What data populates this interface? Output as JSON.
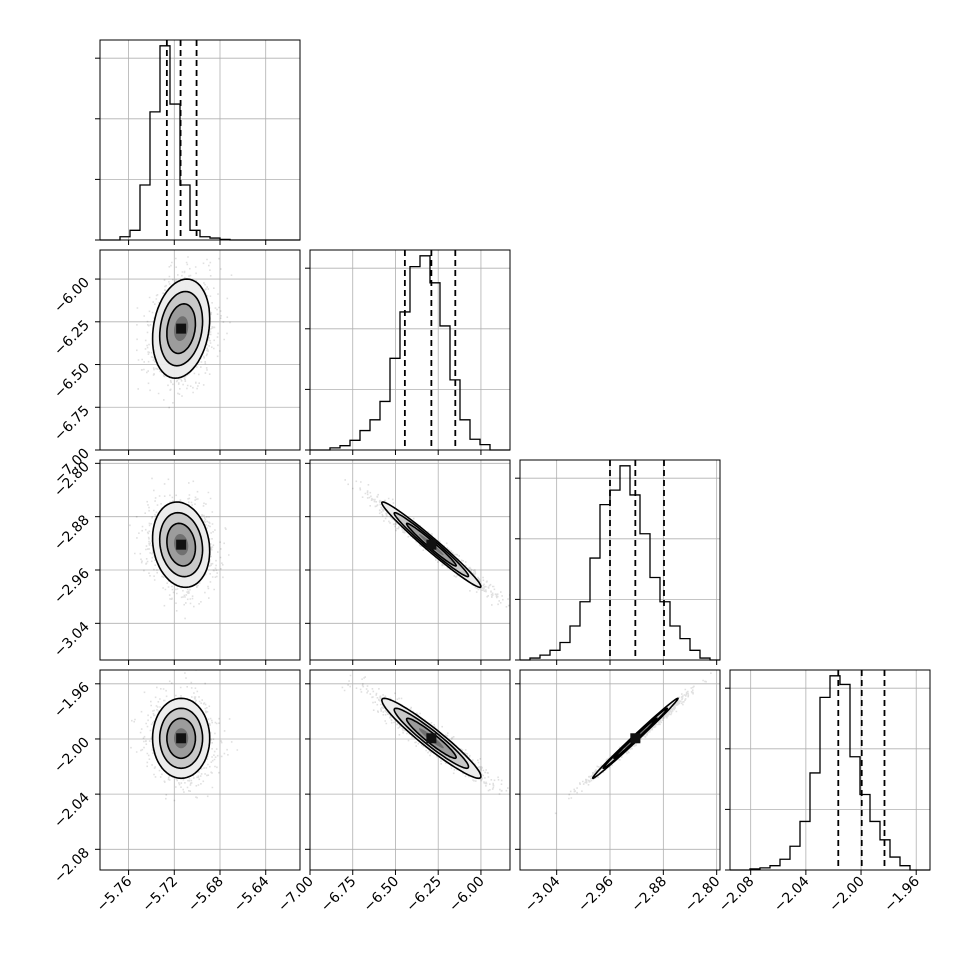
{
  "chart_data": {
    "type": "corner",
    "grid": true,
    "parameters": [
      {
        "name": "",
        "range": [
          -5.785,
          -5.61
        ],
        "ticks": [
          -5.76,
          -5.72,
          -5.68,
          -5.64
        ],
        "tick_labels": [
          "−5.76",
          "−5.72",
          "−5.68",
          "−5.64"
        ],
        "quantiles": [
          -5.7265,
          -5.7145,
          -5.7005
        ],
        "hist_counts": [
          0,
          0,
          5,
          15,
          85,
          198,
          300,
          210,
          85,
          15,
          5,
          3,
          1,
          0,
          0,
          0,
          0,
          0,
          0,
          0
        ]
      },
      {
        "name": "",
        "range": [
          -7.0,
          -5.83
        ],
        "ticks": [
          -7.0,
          -6.75,
          -6.5,
          -6.25,
          -6.0
        ],
        "tick_labels": [
          "−7.00",
          "−6.75",
          "−6.50",
          "−6.25",
          "−6.00"
        ],
        "quantiles": [
          -6.445,
          -6.29,
          -6.15
        ],
        "hist_counts": [
          0,
          0,
          2,
          4,
          9,
          18,
          28,
          45,
          85,
          128,
          170,
          180,
          155,
          115,
          65,
          28,
          10,
          5,
          0,
          0
        ]
      },
      {
        "name": "",
        "range": [
          -3.095,
          -2.795
        ],
        "ticks": [
          -3.04,
          -2.96,
          -2.88,
          -2.8
        ],
        "tick_labels": [
          "−3.04",
          "−2.96",
          "−2.88",
          "−2.80"
        ],
        "quantiles": [
          -2.96,
          -2.922,
          -2.879
        ],
        "hist_counts": [
          0,
          2,
          5,
          10,
          18,
          35,
          60,
          105,
          160,
          175,
          200,
          170,
          130,
          85,
          60,
          35,
          22,
          10,
          2,
          0
        ]
      },
      {
        "name": "",
        "range": [
          -2.095,
          -1.95
        ],
        "ticks": [
          -2.08,
          -2.04,
          -2.0,
          -1.96
        ],
        "tick_labels": [
          "−2.08",
          "−2.04",
          "−2.00",
          "−1.96"
        ],
        "quantiles": [
          -2.0165,
          -1.9995,
          -1.983
        ],
        "hist_counts": [
          0,
          0,
          1,
          2,
          4,
          10,
          22,
          45,
          90,
          160,
          180,
          172,
          105,
          70,
          45,
          28,
          12,
          4,
          0,
          0
        ]
      }
    ],
    "posterior": {
      "means": [
        -5.714,
        -6.29,
        -2.922,
        -1.9995
      ],
      "stds": [
        0.0125,
        0.145,
        0.032,
        0.0145
      ],
      "correlations": [
        [
          1.0,
          0.2,
          -0.15,
          0.0
        ],
        [
          0.2,
          1.0,
          -0.98,
          -0.95
        ],
        [
          -0.15,
          -0.98,
          1.0,
          0.995
        ],
        [
          0.0,
          -0.95,
          0.995,
          1.0
        ]
      ]
    },
    "contour_levels_sigma": [
      0.5,
      1.0,
      1.5,
      2.0
    ]
  }
}
